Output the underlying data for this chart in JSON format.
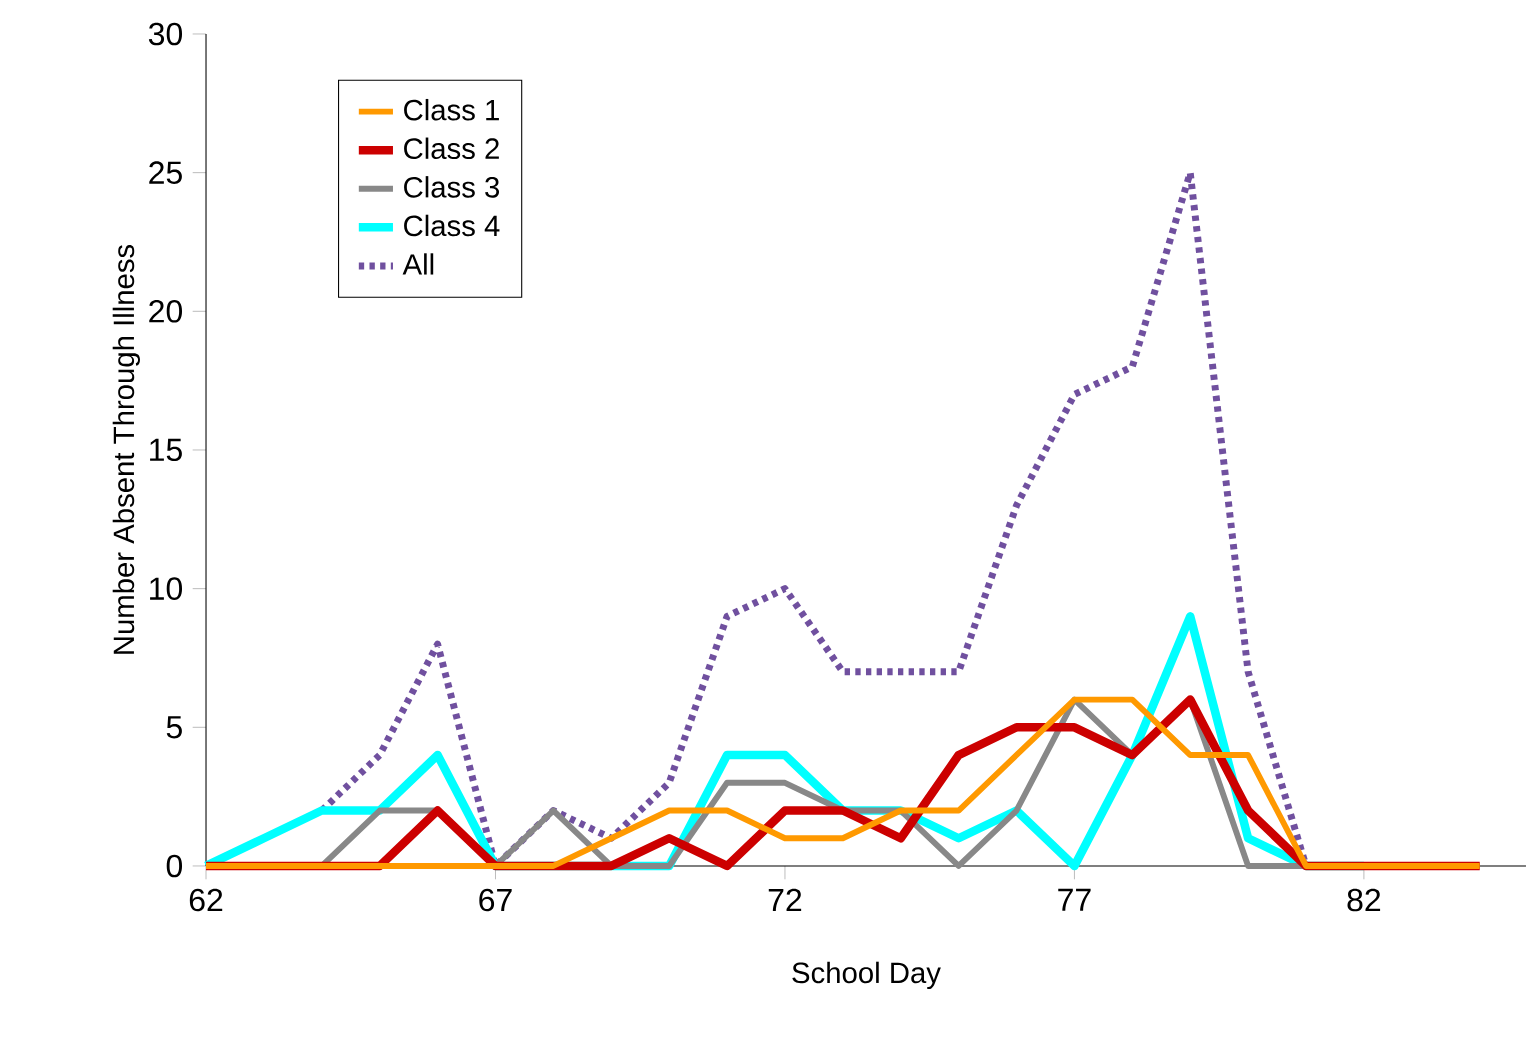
{
  "chart_data": {
    "type": "line",
    "xlabel": "School Day",
    "ylabel": "Number Absent Through Illness",
    "x": [
      62,
      63,
      64,
      65,
      66,
      67,
      68,
      69,
      70,
      71,
      72,
      73,
      74,
      75,
      76,
      77,
      78,
      79,
      80,
      81,
      82,
      83,
      84
    ],
    "xlim": [
      62,
      84.8
    ],
    "xticks": [
      62,
      67,
      72,
      77,
      82
    ],
    "ylim": [
      0,
      30
    ],
    "yticks": [
      0,
      5,
      10,
      15,
      20,
      25,
      30
    ],
    "grid": false,
    "legend": "top left",
    "marker": "none",
    "line_style": "solid",
    "series": [
      {
        "name": "Class 1",
        "color": "#ff9900",
        "values": [
          0,
          0,
          0,
          0,
          0,
          0,
          0,
          1,
          2,
          2,
          1,
          1,
          2,
          2,
          4,
          6,
          6,
          4,
          4,
          0,
          0,
          0,
          0
        ]
      },
      {
        "name": "Class 2",
        "color": "#cc0000",
        "values": [
          0,
          0,
          0,
          0,
          2,
          0,
          0,
          0,
          1,
          0,
          2,
          2,
          1,
          4,
          5,
          5,
          4,
          6,
          2,
          0,
          0,
          0,
          0
        ]
      },
      {
        "name": "Class 3",
        "color": "#888888",
        "values": [
          0,
          0,
          0,
          2,
          2,
          0,
          2,
          0,
          0,
          3,
          3,
          2,
          2,
          0,
          2,
          6,
          4,
          6,
          0,
          0,
          0,
          0,
          0
        ]
      },
      {
        "name": "Class 4",
        "color": "#00ffff",
        "values": [
          0,
          1,
          2,
          2,
          4,
          0,
          0,
          0,
          0,
          4,
          4,
          2,
          2,
          1,
          2,
          0,
          4,
          9,
          1,
          0,
          0,
          null,
          null
        ]
      },
      {
        "name": "All",
        "color": "#70509f",
        "line_style": "dotted",
        "values": [
          null,
          null,
          2,
          4,
          8,
          0,
          2,
          1,
          3,
          9,
          10,
          7,
          7,
          7,
          13,
          17,
          18,
          25,
          7,
          0,
          0,
          0,
          0
        ]
      }
    ]
  }
}
